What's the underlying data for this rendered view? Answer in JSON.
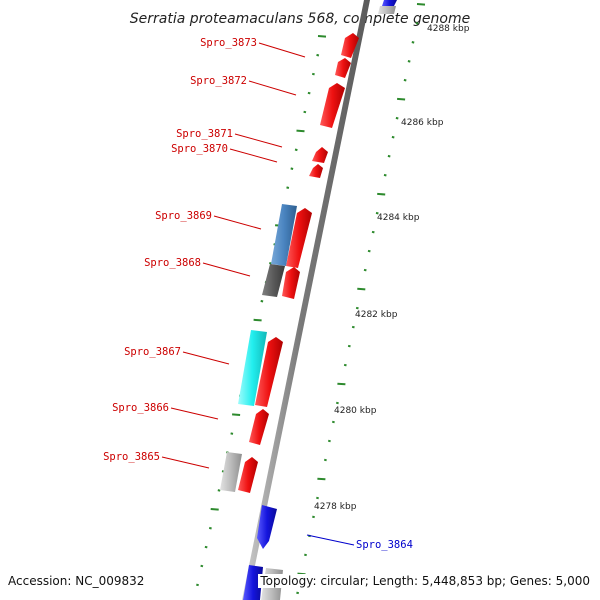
{
  "title": "Serratia proteamaculans 568, complete genome",
  "accession": "Accession: NC_009832",
  "stats": "Topology: circular; Length: 5,448,853 bp; Genes: 5,000",
  "colors": {
    "backbone": "#888888",
    "tick": "#2d8a2d",
    "label_red": "#cc0000",
    "label_blue": "#0000cc",
    "gene_red": "#ee1111",
    "gene_blue": "#1515dd",
    "gene_steel": "#4a84c0",
    "gene_darkgray": "#5a5a5a",
    "gene_cyan": "#22eeee",
    "gene_lightgray": "#bbbbbb"
  },
  "kbp_labels": [
    "4288 kbp",
    "4286 kbp",
    "4284 kbp",
    "4282 kbp",
    "4280 kbp",
    "4278 kbp"
  ],
  "gene_labels": [
    {
      "text": "Spro_3873",
      "color": "label_red"
    },
    {
      "text": "Spro_3872",
      "color": "label_red"
    },
    {
      "text": "Spro_3871",
      "color": "label_red"
    },
    {
      "text": "Spro_3870",
      "color": "label_red"
    },
    {
      "text": "Spro_3869",
      "color": "label_red"
    },
    {
      "text": "Spro_3868",
      "color": "label_red"
    },
    {
      "text": "Spro_3867",
      "color": "label_red"
    },
    {
      "text": "Spro_3866",
      "color": "label_red"
    },
    {
      "text": "Spro_3865",
      "color": "label_red"
    },
    {
      "text": "Spro_3864",
      "color": "label_blue"
    }
  ]
}
